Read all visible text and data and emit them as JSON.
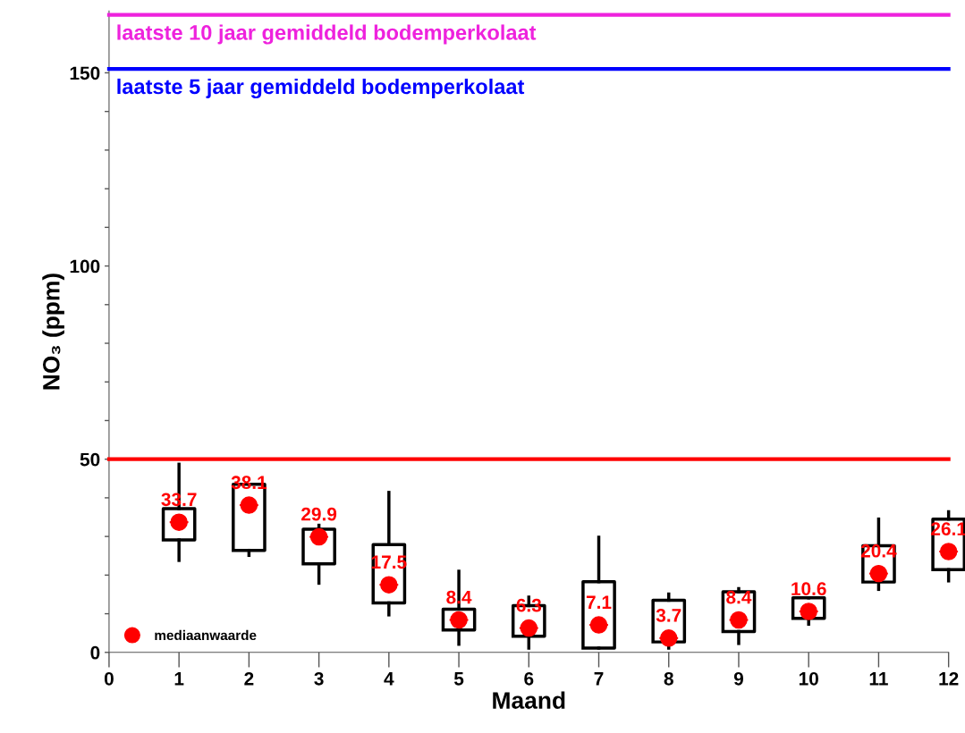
{
  "chart_data": {
    "type": "box",
    "x": [
      1,
      2,
      3,
      4,
      5,
      6,
      7,
      8,
      9,
      10,
      11,
      12
    ],
    "xlabel": "Maand",
    "ylabel": "NO₃ (ppm)",
    "xlim": [
      0,
      12
    ],
    "xticks": [
      0,
      1,
      2,
      3,
      4,
      5,
      6,
      7,
      8,
      9,
      10,
      11,
      12
    ],
    "ylim": [
      0,
      166
    ],
    "yticks": [
      0,
      {
        "value": 10,
        "label": null
      },
      {
        "value": 20,
        "label": null
      },
      {
        "value": 30,
        "label": null
      },
      {
        "value": 40,
        "label": null
      },
      50,
      {
        "value": 60,
        "label": null
      },
      {
        "value": 70,
        "label": null
      },
      {
        "value": 80,
        "label": null
      },
      {
        "value": 90,
        "label": null
      },
      100,
      {
        "value": 110,
        "label": null
      },
      {
        "value": 120,
        "label": null
      },
      {
        "value": 130,
        "label": null
      },
      {
        "value": 140,
        "label": null
      },
      150
    ],
    "series": [
      {
        "color": "#000000",
        "boxes": [
          {
            "low": 23.8,
            "q1": 29.1,
            "median": 33.7,
            "q3": 37.2,
            "high": 48.7
          },
          {
            "low": 25.1,
            "q1": 26.4,
            "median": 38.1,
            "q3": 43.5,
            "high": 43.5
          },
          {
            "low": 17.9,
            "q1": 22.9,
            "median": 29.9,
            "q3": 31.9,
            "high": 32.9
          },
          {
            "low": 9.7,
            "q1": 12.8,
            "median": 17.5,
            "q3": 27.9,
            "high": 41.4
          },
          {
            "low": 2.1,
            "q1": 5.8,
            "median": 8.4,
            "q3": 11.2,
            "high": 21.0
          },
          {
            "low": 1.1,
            "q1": 4.2,
            "median": 6.3,
            "q3": 12.1,
            "high": 14.3
          },
          {
            "low": 1.1,
            "q1": 1.1,
            "median": 7.1,
            "q3": 18.3,
            "high": 29.8
          },
          {
            "low": 1.1,
            "q1": 2.7,
            "median": 3.7,
            "q3": 13.5,
            "high": 15.1
          },
          {
            "low": 2.3,
            "q1": 5.4,
            "median": 8.4,
            "q3": 15.7,
            "high": 16.5
          },
          {
            "low": 7.3,
            "q1": 8.8,
            "median": 10.6,
            "q3": 14.1,
            "high": 14.1
          },
          {
            "low": 16.3,
            "q1": 18.2,
            "median": 20.4,
            "q3": 27.6,
            "high": 34.5
          },
          {
            "low": 18.5,
            "q1": 21.4,
            "median": 26.1,
            "q3": 34.5,
            "high": 36.4
          }
        ]
      },
      {
        "type": "scatter",
        "name": "mediaanwaarde",
        "color": "#ff0000",
        "x": [
          1,
          2,
          3,
          4,
          5,
          6,
          7,
          8,
          9,
          10,
          11,
          12
        ],
        "values": [
          33.7,
          38.1,
          29.9,
          17.5,
          8.4,
          6.3,
          7.1,
          3.7,
          8.4,
          10.6,
          20.4,
          26.1
        ]
      }
    ],
    "data_labels": true,
    "marker": "circle",
    "legend": "bottom left",
    "ref_lines": [
      {
        "axis": "y",
        "value": 50,
        "color": "#ff0000"
      },
      {
        "axis": "y",
        "value": 151,
        "label": "laatste 5 jaar gemiddeld bodemperkolaat",
        "color": "#0000ff"
      },
      {
        "axis": "y",
        "value": 165,
        "label": "laatste 10 jaar gemiddeld bodemperkolaat",
        "color": "#ee22dd"
      }
    ]
  }
}
